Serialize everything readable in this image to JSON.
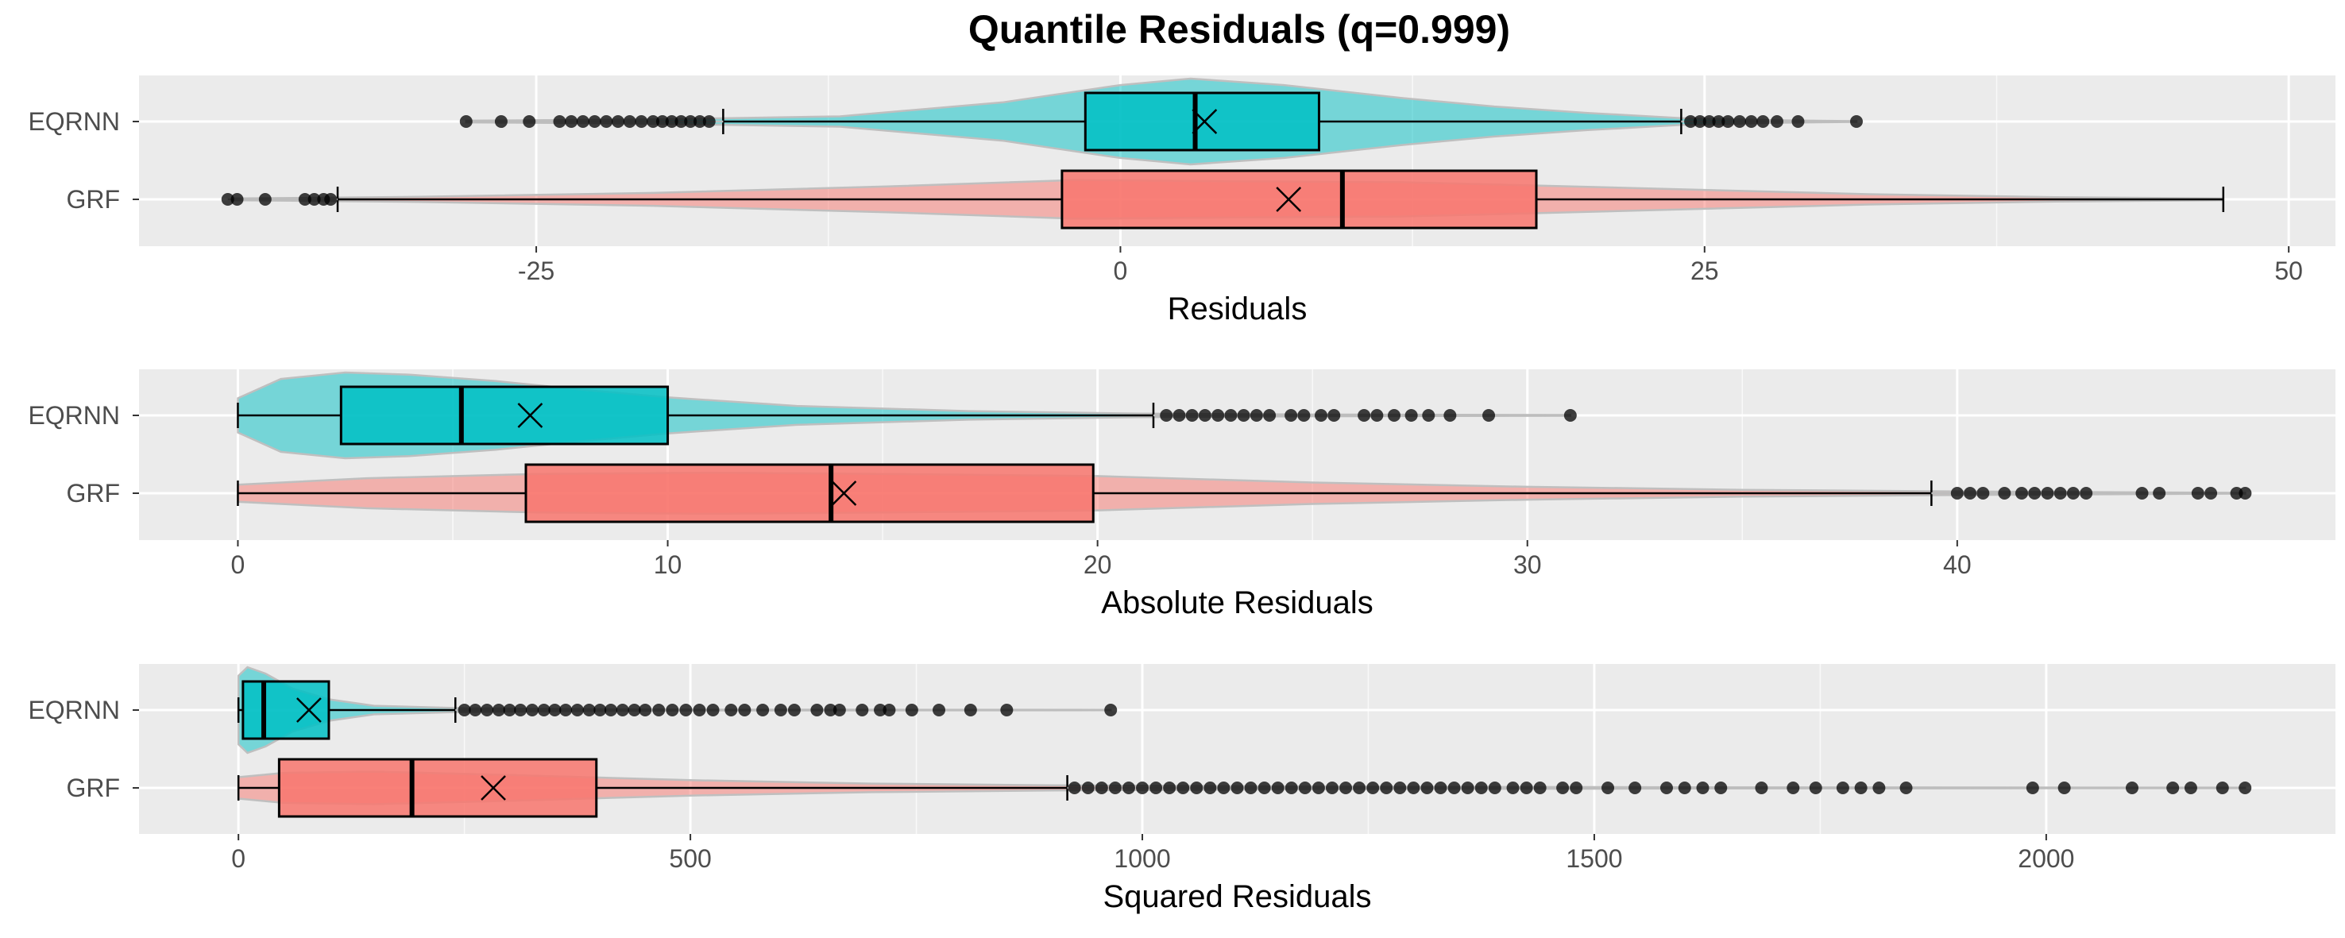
{
  "title": "Quantile Residuals (q=0.999)",
  "colors": {
    "EQRNN": "#00BFC4",
    "GRF": "#F8766D",
    "panel_bg": "#EBEBEB",
    "grid_major": "#FFFFFF",
    "outlier": "#000000",
    "violin_outline": "#BFBFBF"
  },
  "chart_data": [
    {
      "type": "boxplot",
      "title": "",
      "xlabel": "Residuals",
      "ylabel": "",
      "xlim": [
        -42,
        52
      ],
      "xticks": [
        -25,
        0,
        25,
        50
      ],
      "xtick_labels": [
        "-25",
        "0",
        "25",
        "50"
      ],
      "categories": [
        "EQRNN",
        "GRF"
      ],
      "series": [
        {
          "name": "EQRNN",
          "whisker_low": -17,
          "q1": -1.5,
          "median": 3.2,
          "q3": 8.5,
          "whisker_high": 24,
          "mean": 3.6,
          "outliers": [
            -28,
            -26.5,
            -25.3,
            -24,
            -23.5,
            -23,
            -22.5,
            -22,
            -21.5,
            -21,
            -20.5,
            -20,
            -19.6,
            -19.2,
            -18.8,
            -18.4,
            -18,
            -17.6,
            24.4,
            24.8,
            25.2,
            25.6,
            26,
            26.5,
            27,
            27.5,
            28.1,
            29,
            31.5
          ],
          "violin": [
            [
              -28,
              0.02
            ],
            [
              -20,
              0.05
            ],
            [
              -12,
              0.12
            ],
            [
              -5,
              0.45
            ],
            [
              0,
              0.85
            ],
            [
              3,
              1.0
            ],
            [
              7,
              0.85
            ],
            [
              12,
              0.55
            ],
            [
              16,
              0.35
            ],
            [
              20,
              0.2
            ],
            [
              24,
              0.08
            ],
            [
              28,
              0.03
            ],
            [
              31.5,
              0.01
            ]
          ]
        },
        {
          "name": "GRF",
          "whisker_low": -33.5,
          "q1": -2.5,
          "median": 9.5,
          "q3": 17.8,
          "whisker_high": 47.2,
          "mean": 7.2,
          "outliers": [
            -38.2,
            -37.8,
            -36.6,
            -34.9,
            -34.5,
            -34.1,
            -33.8
          ],
          "violin": [
            [
              -38,
              0.02
            ],
            [
              -30,
              0.06
            ],
            [
              -20,
              0.15
            ],
            [
              -10,
              0.3
            ],
            [
              -2,
              0.45
            ],
            [
              5,
              0.42
            ],
            [
              12,
              0.4
            ],
            [
              18,
              0.32
            ],
            [
              25,
              0.22
            ],
            [
              32,
              0.12
            ],
            [
              40,
              0.05
            ],
            [
              47.2,
              0.02
            ]
          ]
        }
      ]
    },
    {
      "type": "boxplot",
      "title": "",
      "xlabel": "Absolute Residuals",
      "ylabel": "",
      "xlim": [
        -2.3,
        48.8
      ],
      "xticks": [
        0,
        10,
        20,
        30,
        40
      ],
      "xtick_labels": [
        "0",
        "10",
        "20",
        "30",
        "40"
      ],
      "categories": [
        "EQRNN",
        "GRF"
      ],
      "series": [
        {
          "name": "EQRNN",
          "whisker_low": 0,
          "q1": 2.4,
          "median": 5.2,
          "q3": 10,
          "whisker_high": 21.3,
          "mean": 6.8,
          "outliers": [
            21.6,
            21.9,
            22.2,
            22.5,
            22.8,
            23.1,
            23.4,
            23.7,
            24,
            24.5,
            24.8,
            25.2,
            25.5,
            26.2,
            26.5,
            26.9,
            27.3,
            27.7,
            28.2,
            29.1,
            31
          ],
          "violin": [
            [
              0,
              0.4
            ],
            [
              1,
              0.85
            ],
            [
              2.5,
              1.0
            ],
            [
              4,
              0.95
            ],
            [
              6,
              0.8
            ],
            [
              8,
              0.6
            ],
            [
              10,
              0.42
            ],
            [
              13,
              0.22
            ],
            [
              17,
              0.1
            ],
            [
              21,
              0.04
            ],
            [
              25,
              0.02
            ],
            [
              31,
              0.01
            ]
          ]
        },
        {
          "name": "GRF",
          "whisker_low": 0,
          "q1": 6.7,
          "median": 13.8,
          "q3": 19.9,
          "whisker_high": 39.4,
          "mean": 14.1,
          "outliers": [
            40,
            40.3,
            40.6,
            41.1,
            41.5,
            41.8,
            42.1,
            42.4,
            42.7,
            43,
            44.3,
            44.7,
            45.6,
            45.9,
            46.5,
            46.7
          ],
          "violin": [
            [
              0,
              0.2
            ],
            [
              3,
              0.35
            ],
            [
              7,
              0.45
            ],
            [
              11,
              0.48
            ],
            [
              15,
              0.45
            ],
            [
              20,
              0.4
            ],
            [
              25,
              0.25
            ],
            [
              30,
              0.15
            ],
            [
              35,
              0.08
            ],
            [
              40,
              0.04
            ],
            [
              46.7,
              0.01
            ]
          ]
        }
      ]
    },
    {
      "type": "boxplot",
      "title": "",
      "xlabel": "Squared Residuals",
      "ylabel": "",
      "xlim": [
        -110,
        2320
      ],
      "xticks": [
        0,
        500,
        1000,
        1500,
        2000
      ],
      "xtick_labels": [
        "0",
        "500",
        "1000",
        "1500",
        "2000"
      ],
      "categories": [
        "EQRNN",
        "GRF"
      ],
      "series": [
        {
          "name": "EQRNN",
          "whisker_low": 0,
          "q1": 5,
          "median": 28,
          "q3": 100,
          "whisker_high": 240,
          "mean": 78,
          "outliers": [
            250,
            262,
            275,
            288,
            300,
            312,
            325,
            338,
            350,
            362,
            375,
            388,
            400,
            412,
            425,
            438,
            450,
            465,
            480,
            495,
            510,
            525,
            545,
            560,
            580,
            600,
            615,
            640,
            655,
            665,
            690,
            710,
            720,
            745,
            775,
            810,
            850,
            965
          ],
          "violin": [
            [
              0,
              0.8
            ],
            [
              10,
              1.0
            ],
            [
              30,
              0.85
            ],
            [
              60,
              0.5
            ],
            [
              100,
              0.25
            ],
            [
              150,
              0.1
            ],
            [
              250,
              0.04
            ],
            [
              500,
              0.01
            ],
            [
              965,
              0.005
            ]
          ]
        },
        {
          "name": "GRF",
          "whisker_low": 0,
          "q1": 45,
          "median": 192,
          "q3": 396,
          "whisker_high": 917,
          "mean": 282,
          "outliers": [
            925,
            940,
            955,
            970,
            985,
            1000,
            1015,
            1030,
            1045,
            1060,
            1075,
            1090,
            1105,
            1120,
            1135,
            1150,
            1165,
            1180,
            1195,
            1210,
            1225,
            1240,
            1255,
            1270,
            1285,
            1300,
            1315,
            1330,
            1345,
            1360,
            1375,
            1390,
            1410,
            1425,
            1440,
            1465,
            1480,
            1515,
            1545,
            1580,
            1600,
            1620,
            1640,
            1685,
            1720,
            1745,
            1775,
            1795,
            1815,
            1845,
            1985,
            2020,
            2095,
            2140,
            2160,
            2195,
            2220
          ],
          "violin": [
            [
              0,
              0.25
            ],
            [
              50,
              0.35
            ],
            [
              150,
              0.38
            ],
            [
              300,
              0.3
            ],
            [
              500,
              0.18
            ],
            [
              700,
              0.1
            ],
            [
              900,
              0.06
            ],
            [
              1200,
              0.03
            ],
            [
              1600,
              0.015
            ],
            [
              2220,
              0.005
            ]
          ]
        }
      ]
    }
  ]
}
